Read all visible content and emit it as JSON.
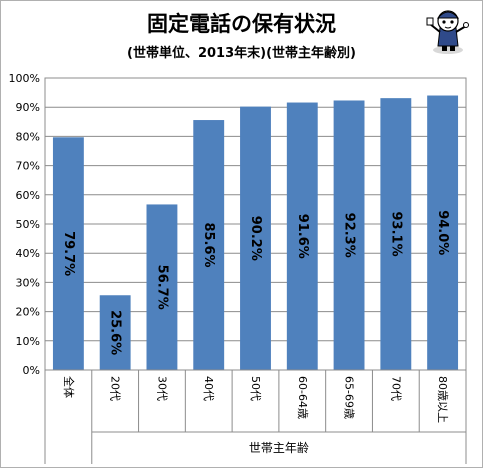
{
  "chart_data": {
    "type": "bar",
    "title": "固定電話の保有状況",
    "subtitle": "(世帯単位、2013年末)(世帯主年齢別)",
    "categories": [
      "全体",
      "20代",
      "30代",
      "40代",
      "50代",
      "60-64歳",
      "65-69歳",
      "70代",
      "80歳以上"
    ],
    "values": [
      79.7,
      25.6,
      56.7,
      85.6,
      90.2,
      91.6,
      92.3,
      93.1,
      94.0
    ],
    "value_labels": [
      "79.7%",
      "25.6%",
      "56.7%",
      "85.6%",
      "90.2%",
      "91.6%",
      "92.3%",
      "93.1%",
      "94.0%"
    ],
    "y_ticks": [
      "0%",
      "10%",
      "20%",
      "30%",
      "40%",
      "50%",
      "60%",
      "70%",
      "80%",
      "90%",
      "100%"
    ],
    "ylim": [
      0,
      100
    ],
    "xlabel": "",
    "x_group_label": "世帯主年齢",
    "ylabel": "",
    "grid": true,
    "bar_color": "#4f81bd"
  }
}
